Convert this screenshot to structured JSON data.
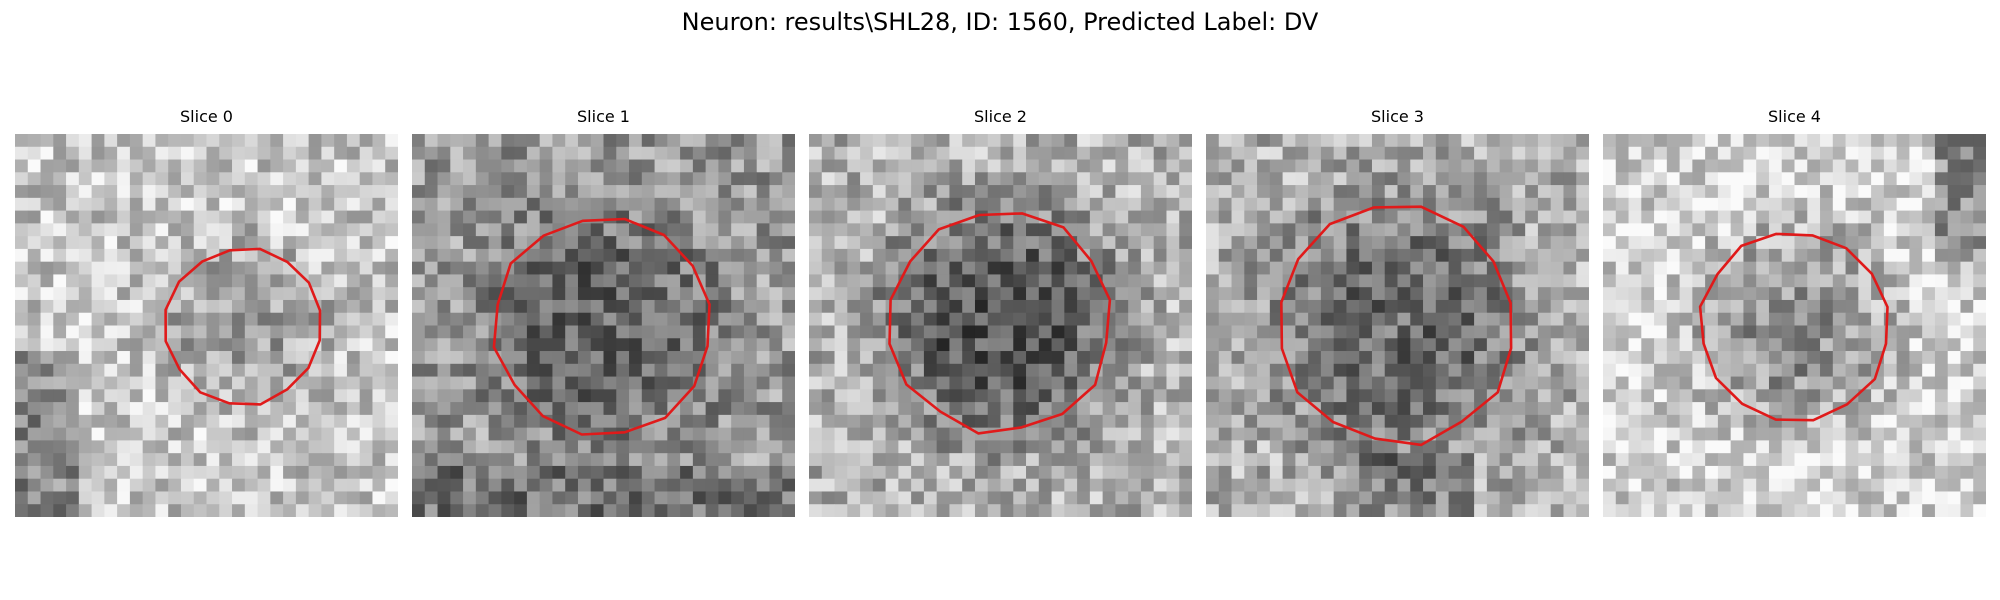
{
  "figure": {
    "title": "Neuron: results\\SHL28, ID: 1560, Predicted Label: DV",
    "outline_color": "#e01a1a",
    "image_colormap": "grayscale"
  },
  "panels": [
    {
      "title": "Slice 0"
    },
    {
      "title": "Slice 1"
    },
    {
      "title": "Slice 2"
    },
    {
      "title": "Slice 3"
    },
    {
      "title": "Slice 4"
    }
  ]
}
